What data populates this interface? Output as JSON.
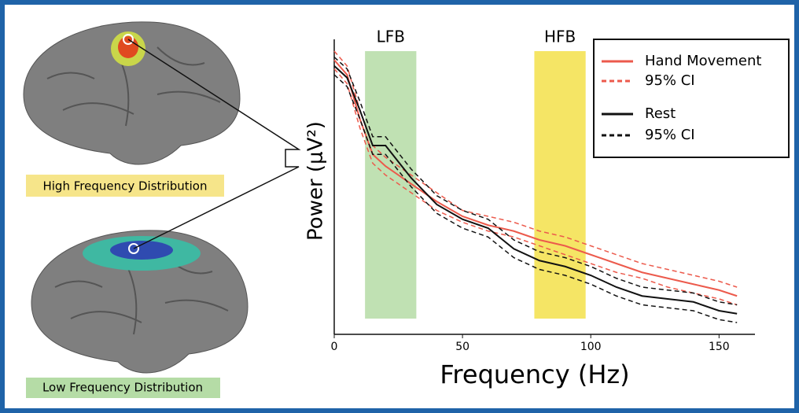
{
  "panels": [
    {
      "label": "High Frequency Distribution"
    },
    {
      "label": "Low Frequency Distribution"
    }
  ],
  "chart_data": {
    "type": "line",
    "xlabel": "Frequency (Hz)",
    "ylabel": "Power (μV²)",
    "x": [
      0,
      5,
      10,
      15,
      20,
      30,
      40,
      50,
      60,
      70,
      80,
      90,
      100,
      110,
      120,
      130,
      140,
      150,
      157
    ],
    "xlim": [
      0,
      164
    ],
    "xticks": [
      0,
      50,
      100,
      150
    ],
    "ylim": [
      0,
      100
    ],
    "bands": [
      {
        "label": "LFB",
        "from": 12,
        "to": 32,
        "color": "#b5dca6"
      },
      {
        "label": "HFB",
        "from": 78,
        "to": 98,
        "color": "#f3e04a"
      }
    ],
    "series": [
      {
        "name": "Hand Movement",
        "color": "#ec5a4c",
        "values": [
          93,
          88,
          73,
          61,
          57,
          51,
          45,
          40,
          37,
          35,
          32,
          30,
          27,
          24,
          21,
          19,
          17,
          15,
          13
        ]
      },
      {
        "name": "95% CI",
        "color": "#ec5a4c",
        "dashed": true,
        "lower": [
          90,
          85,
          70,
          58,
          54,
          48,
          42,
          38,
          35,
          33,
          30,
          27,
          24,
          21,
          19,
          16,
          14,
          12,
          10
        ],
        "upper": [
          96,
          91,
          76,
          64,
          60,
          54,
          48,
          42,
          40,
          38,
          35,
          33,
          30,
          27,
          24,
          22,
          20,
          18,
          16
        ]
      },
      {
        "name": "Rest",
        "color": "#111111",
        "values": [
          91,
          87,
          76,
          64,
          64,
          53,
          44,
          39,
          36,
          29,
          25,
          23,
          20,
          16,
          13,
          12,
          11,
          8,
          7
        ]
      },
      {
        "name": "95% CI",
        "color": "#111111",
        "dashed": true,
        "lower": [
          88,
          84,
          73,
          61,
          61,
          50,
          41,
          36,
          33,
          26,
          22,
          20,
          17,
          13,
          10,
          9,
          8,
          5,
          4
        ],
        "upper": [
          94,
          90,
          79,
          67,
          67,
          56,
          47,
          42,
          39,
          32,
          28,
          26,
          23,
          19,
          16,
          15,
          14,
          11,
          10
        ]
      }
    ]
  }
}
